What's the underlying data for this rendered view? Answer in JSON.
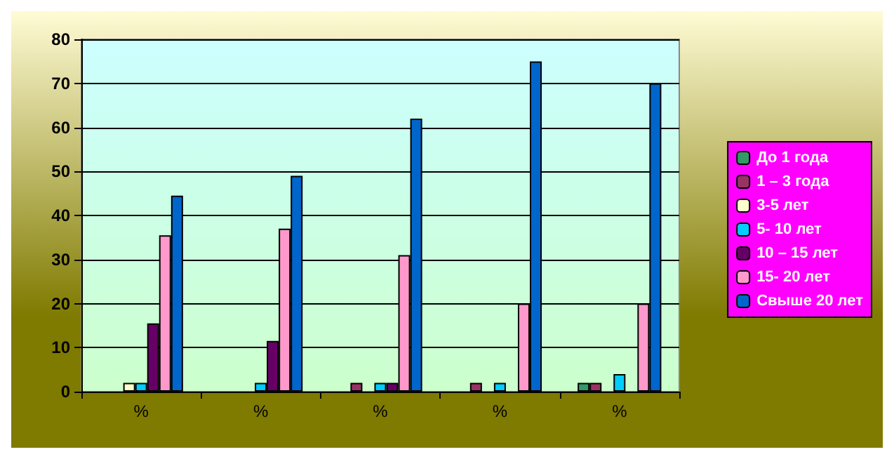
{
  "chart_data": {
    "type": "bar",
    "categories": [
      "%",
      "%",
      "%",
      "%",
      "%"
    ],
    "series": [
      {
        "name": "До 1 года",
        "color": "#339966",
        "values": [
          0,
          0,
          0,
          0,
          2
        ]
      },
      {
        "name": "1 – 3 года",
        "color": "#993366",
        "values": [
          0,
          0,
          2,
          2,
          2
        ]
      },
      {
        "name": "3-5 лет",
        "color": "#ffffcc",
        "values": [
          2,
          0,
          0,
          0,
          0
        ]
      },
      {
        "name": "5- 10 лет",
        "color": "#00ccff",
        "values": [
          2,
          2,
          2,
          2,
          4
        ]
      },
      {
        "name": "10 – 15 лет",
        "color": "#660066",
        "values": [
          15.5,
          11.5,
          2,
          0,
          0
        ]
      },
      {
        "name": "15- 20 лет",
        "color": "#ff99cc",
        "values": [
          35.5,
          37,
          31,
          20,
          20
        ]
      },
      {
        "name": "Свыше 20 лет",
        "color": "#0066cc",
        "values": [
          44.5,
          49,
          62,
          75,
          70
        ]
      }
    ],
    "ylim": [
      0,
      80
    ],
    "yticks": [
      0,
      10,
      20,
      30,
      40,
      50,
      60,
      70,
      80
    ],
    "grid": "y",
    "legend": "right"
  }
}
